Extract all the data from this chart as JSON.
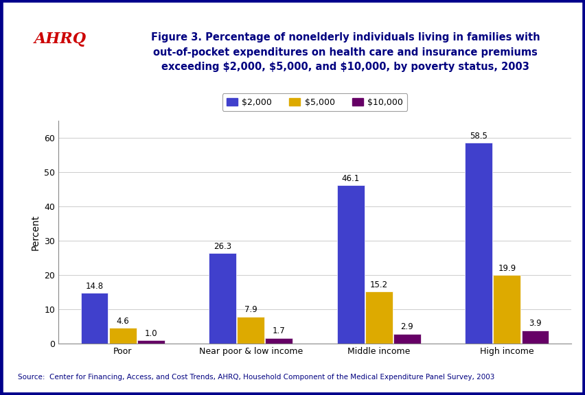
{
  "categories": [
    "Poor",
    "Near poor & low income",
    "Middle income",
    "High income"
  ],
  "series": {
    "$2,000": [
      14.8,
      26.3,
      46.1,
      58.5
    ],
    "$5,000": [
      4.6,
      7.9,
      15.2,
      19.9
    ],
    "$10,000": [
      1.0,
      1.7,
      2.9,
      3.9
    ]
  },
  "colors": {
    "$2,000": "#4040CC",
    "$5,000": "#DDAA00",
    "$10,000": "#660066"
  },
  "ylabel": "Percent",
  "ylim": [
    0,
    65
  ],
  "yticks": [
    0,
    10,
    20,
    30,
    40,
    50,
    60
  ],
  "bar_width": 0.22,
  "title_line1": "Figure 3. Percentage of nonelderly individuals living in families with",
  "title_line2": "out-of-pocket expenditures on health care and insurance premiums",
  "title_line3": "exceeding $2,000, $5,000, and $10,000, by poverty status, 2003",
  "source_text": "Source:  Center for Financing, Access, and Cost Trends, AHRQ, Household Component of the Medical Expenditure Panel Survey, 2003",
  "title_color": "#000080",
  "source_color": "#000080",
  "outer_bg_color": "#FFFFFF",
  "plot_bg_color": "#FFFFFF",
  "header_bg_color": "#FFFFFF",
  "border_color": "#00008B",
  "separator_color": "#00008B",
  "legend_labels": [
    "$2,000",
    "$5,000",
    "$10,000"
  ],
  "value_fontsize": 8.5,
  "axis_label_fontsize": 10,
  "tick_label_fontsize": 9,
  "logo_bg_color": "#1E8BC3",
  "logo_text_color": "#FFFFFF",
  "ahrq_color": "#CC0000"
}
